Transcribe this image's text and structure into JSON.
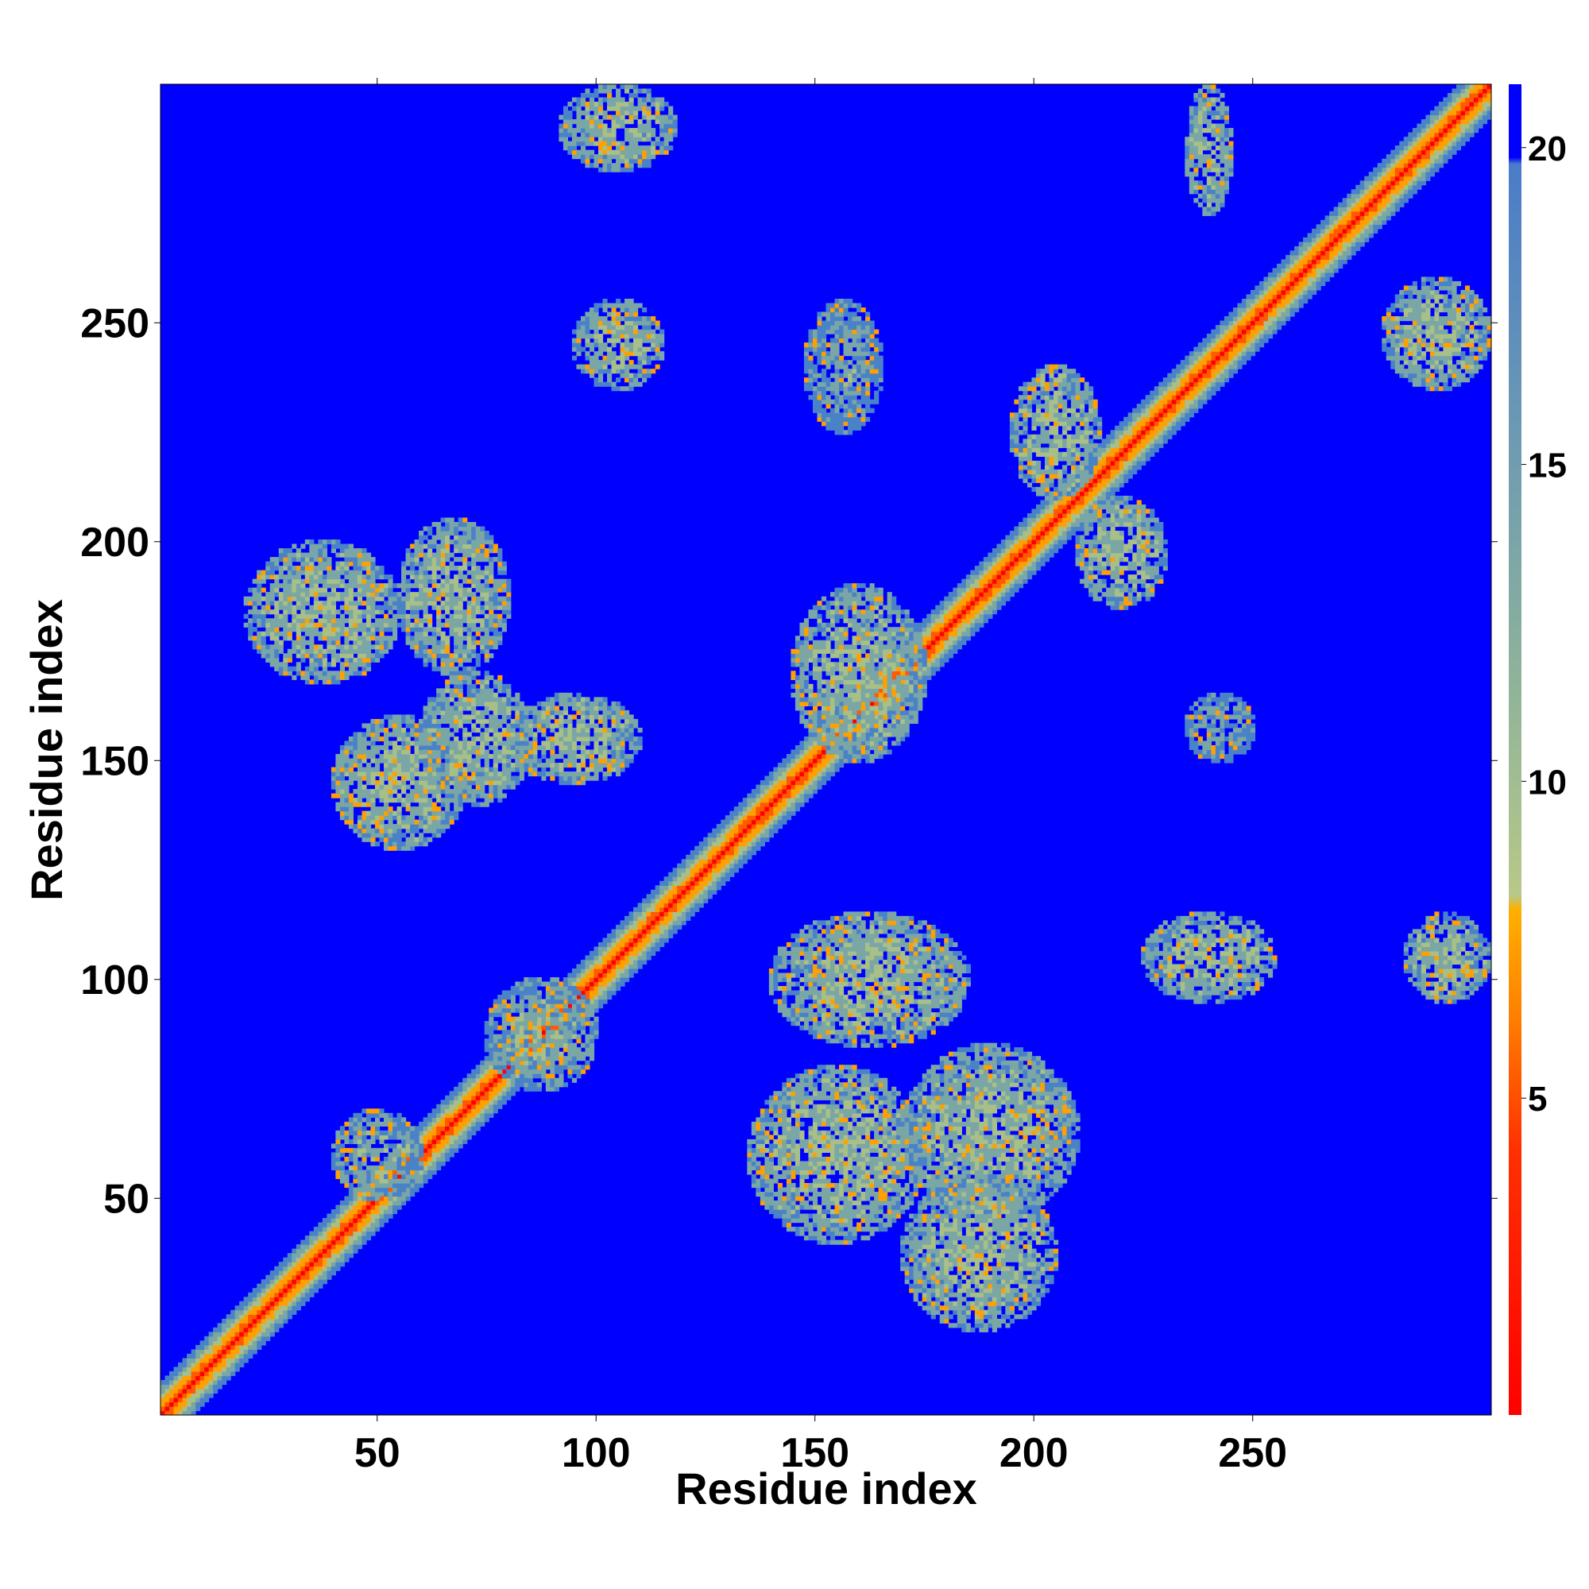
{
  "chart_data": {
    "type": "heatmap",
    "title": "",
    "xlabel": "Residue index",
    "ylabel": "Residue index",
    "xlim": [
      1,
      304
    ],
    "ylim": [
      1,
      304
    ],
    "xticks": [
      50,
      100,
      150,
      200,
      250
    ],
    "yticks": [
      50,
      100,
      150,
      200,
      250
    ],
    "colorbar": {
      "range": [
        0,
        21
      ],
      "ticks": [
        5,
        10,
        15,
        20
      ],
      "colors_low_to_high": [
        "#ff0000",
        "#ff5a00",
        "#ffa000",
        "#a8c088",
        "#7aa6a6",
        "#4a82c8",
        "#0000ff"
      ]
    },
    "background_value": 21,
    "diagonal": {
      "start": 1,
      "end": 304,
      "core_value": 1,
      "width": 7
    },
    "contact_regions": [
      {
        "x": [
          20,
          55
        ],
        "y": [
          168,
          200
        ],
        "value": 11
      },
      {
        "x": [
          55,
          80
        ],
        "y": [
          170,
          205
        ],
        "value": 11
      },
      {
        "x": [
          80,
          110
        ],
        "y": [
          145,
          165
        ],
        "value": 11
      },
      {
        "x": [
          40,
          70
        ],
        "y": [
          130,
          160
        ],
        "value": 11
      },
      {
        "x": [
          60,
          85
        ],
        "y": [
          140,
          170
        ],
        "value": 11
      },
      {
        "x": [
          140,
          185
        ],
        "y": [
          85,
          115
        ],
        "value": 11
      },
      {
        "x": [
          170,
          210
        ],
        "y": [
          45,
          85
        ],
        "value": 11
      },
      {
        "x": [
          135,
          175
        ],
        "y": [
          40,
          80
        ],
        "value": 11
      },
      {
        "x": [
          170,
          205
        ],
        "y": [
          20,
          55
        ],
        "value": 11
      },
      {
        "x": [
          95,
          115
        ],
        "y": [
          235,
          255
        ],
        "value": 11
      },
      {
        "x": [
          92,
          118
        ],
        "y": [
          285,
          304
        ],
        "value": 11
      },
      {
        "x": [
          235,
          245
        ],
        "y": [
          275,
          304
        ],
        "value": 11
      },
      {
        "x": [
          280,
          304
        ],
        "y": [
          235,
          260
        ],
        "value": 11
      },
      {
        "x": [
          225,
          255
        ],
        "y": [
          95,
          115
        ],
        "value": 11
      },
      {
        "x": [
          285,
          304
        ],
        "y": [
          95,
          115
        ],
        "value": 11
      },
      {
        "x": [
          235,
          250
        ],
        "y": [
          150,
          165
        ],
        "value": 13
      },
      {
        "x": [
          195,
          215
        ],
        "y": [
          210,
          240
        ],
        "value": 11
      },
      {
        "x": [
          210,
          230
        ],
        "y": [
          185,
          210
        ],
        "value": 11
      },
      {
        "x": [
          148,
          165
        ],
        "y": [
          225,
          255
        ],
        "value": 13
      },
      {
        "x": [
          145,
          175
        ],
        "y": [
          150,
          190
        ],
        "value": 11
      },
      {
        "x": [
          40,
          60
        ],
        "y": [
          50,
          70
        ],
        "value": 12
      },
      {
        "x": [
          75,
          100
        ],
        "y": [
          75,
          100
        ],
        "value": 12
      }
    ]
  }
}
